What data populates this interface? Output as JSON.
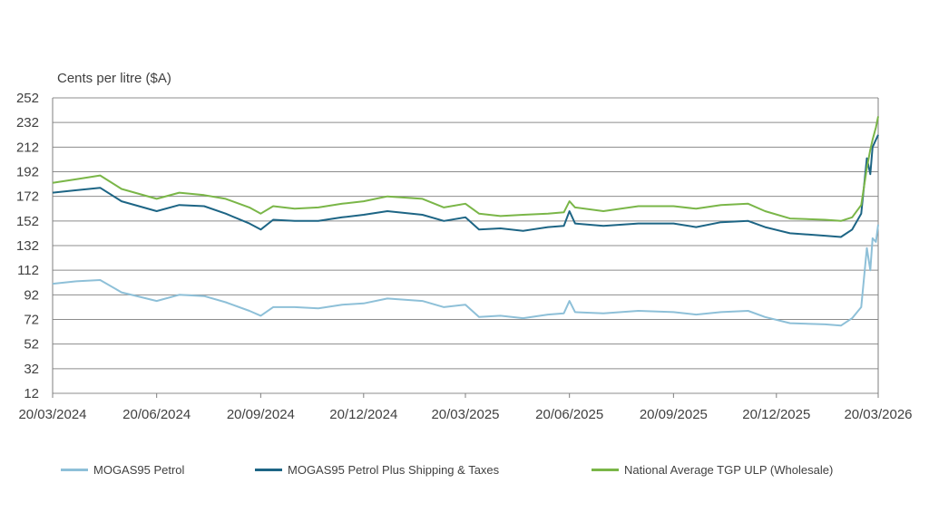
{
  "chart_data": {
    "type": "line",
    "unit_label": "Cents per litre ($A)",
    "ylim": [
      12,
      252
    ],
    "y_ticks": [
      252,
      232,
      212,
      192,
      172,
      152,
      132,
      112,
      92,
      72,
      52,
      32,
      12
    ],
    "x_ticks": [
      "20/03/2024",
      "20/06/2024",
      "20/09/2024",
      "20/12/2024",
      "20/03/2025",
      "20/06/2025",
      "20/09/2025",
      "20/12/2025",
      "20/03/2026"
    ],
    "grid": true,
    "legend_position": "bottom",
    "series": [
      {
        "name": "MOGAS95 Petrol",
        "color": "#8ec0d8",
        "points": [
          [
            "20/03/2024",
            101
          ],
          [
            "10/04/2024",
            103
          ],
          [
            "01/05/2024",
            104
          ],
          [
            "20/05/2024",
            94
          ],
          [
            "20/06/2024",
            87
          ],
          [
            "10/07/2024",
            92
          ],
          [
            "01/08/2024",
            91
          ],
          [
            "20/08/2024",
            86
          ],
          [
            "10/09/2024",
            79
          ],
          [
            "20/09/2024",
            75
          ],
          [
            "01/10/2024",
            82
          ],
          [
            "20/10/2024",
            82
          ],
          [
            "10/11/2024",
            81
          ],
          [
            "01/12/2024",
            84
          ],
          [
            "20/12/2024",
            85
          ],
          [
            "10/01/2025",
            89
          ],
          [
            "10/02/2025",
            87
          ],
          [
            "01/03/2025",
            82
          ],
          [
            "20/03/2025",
            84
          ],
          [
            "01/04/2025",
            74
          ],
          [
            "20/04/2025",
            75
          ],
          [
            "10/05/2025",
            73
          ],
          [
            "01/06/2025",
            76
          ],
          [
            "15/06/2025",
            77
          ],
          [
            "20/06/2025",
            87
          ],
          [
            "25/06/2025",
            78
          ],
          [
            "20/07/2025",
            77
          ],
          [
            "20/08/2025",
            79
          ],
          [
            "20/09/2025",
            78
          ],
          [
            "10/10/2025",
            76
          ],
          [
            "01/11/2025",
            78
          ],
          [
            "25/11/2025",
            79
          ],
          [
            "10/12/2025",
            74
          ],
          [
            "01/01/2026",
            69
          ],
          [
            "01/02/2026",
            68
          ],
          [
            "15/02/2026",
            67
          ],
          [
            "25/02/2026",
            73
          ],
          [
            "05/03/2026",
            82
          ],
          [
            "10/03/2026",
            130
          ],
          [
            "13/03/2026",
            112
          ],
          [
            "15/03/2026",
            138
          ],
          [
            "18/03/2026",
            135
          ],
          [
            "20/03/2026",
            149
          ]
        ]
      },
      {
        "name": "MOGAS95 Petrol Plus Shipping & Taxes",
        "color": "#1d6585",
        "points": [
          [
            "20/03/2024",
            175
          ],
          [
            "10/04/2024",
            177
          ],
          [
            "01/05/2024",
            179
          ],
          [
            "20/05/2024",
            168
          ],
          [
            "20/06/2024",
            160
          ],
          [
            "10/07/2024",
            165
          ],
          [
            "01/08/2024",
            164
          ],
          [
            "20/08/2024",
            158
          ],
          [
            "10/09/2024",
            150
          ],
          [
            "20/09/2024",
            145
          ],
          [
            "01/10/2024",
            153
          ],
          [
            "20/10/2024",
            152
          ],
          [
            "10/11/2024",
            152
          ],
          [
            "01/12/2024",
            155
          ],
          [
            "20/12/2024",
            157
          ],
          [
            "10/01/2025",
            160
          ],
          [
            "10/02/2025",
            157
          ],
          [
            "01/03/2025",
            152
          ],
          [
            "20/03/2025",
            155
          ],
          [
            "01/04/2025",
            145
          ],
          [
            "20/04/2025",
            146
          ],
          [
            "10/05/2025",
            144
          ],
          [
            "01/06/2025",
            147
          ],
          [
            "15/06/2025",
            148
          ],
          [
            "20/06/2025",
            160
          ],
          [
            "25/06/2025",
            150
          ],
          [
            "20/07/2025",
            148
          ],
          [
            "20/08/2025",
            150
          ],
          [
            "20/09/2025",
            150
          ],
          [
            "10/10/2025",
            147
          ],
          [
            "01/11/2025",
            151
          ],
          [
            "25/11/2025",
            152
          ],
          [
            "10/12/2025",
            147
          ],
          [
            "01/01/2026",
            142
          ],
          [
            "01/02/2026",
            140
          ],
          [
            "15/02/2026",
            139
          ],
          [
            "25/02/2026",
            145
          ],
          [
            "05/03/2026",
            158
          ],
          [
            "10/03/2026",
            203
          ],
          [
            "13/03/2026",
            190
          ],
          [
            "15/03/2026",
            212
          ],
          [
            "18/03/2026",
            218
          ],
          [
            "20/03/2026",
            222
          ]
        ]
      },
      {
        "name": "National Average TGP ULP (Wholesale)",
        "color": "#7ab648",
        "points": [
          [
            "20/03/2024",
            183
          ],
          [
            "10/04/2024",
            186
          ],
          [
            "01/05/2024",
            189
          ],
          [
            "20/05/2024",
            178
          ],
          [
            "20/06/2024",
            170
          ],
          [
            "10/07/2024",
            175
          ],
          [
            "01/08/2024",
            173
          ],
          [
            "20/08/2024",
            170
          ],
          [
            "10/09/2024",
            163
          ],
          [
            "20/09/2024",
            158
          ],
          [
            "01/10/2024",
            164
          ],
          [
            "20/10/2024",
            162
          ],
          [
            "10/11/2024",
            163
          ],
          [
            "01/12/2024",
            166
          ],
          [
            "20/12/2024",
            168
          ],
          [
            "10/01/2025",
            172
          ],
          [
            "10/02/2025",
            170
          ],
          [
            "01/03/2025",
            163
          ],
          [
            "20/03/2025",
            166
          ],
          [
            "01/04/2025",
            158
          ],
          [
            "20/04/2025",
            156
          ],
          [
            "10/05/2025",
            157
          ],
          [
            "01/06/2025",
            158
          ],
          [
            "15/06/2025",
            159
          ],
          [
            "20/06/2025",
            168
          ],
          [
            "25/06/2025",
            163
          ],
          [
            "20/07/2025",
            160
          ],
          [
            "20/08/2025",
            164
          ],
          [
            "20/09/2025",
            164
          ],
          [
            "10/10/2025",
            162
          ],
          [
            "01/11/2025",
            165
          ],
          [
            "25/11/2025",
            166
          ],
          [
            "10/12/2025",
            160
          ],
          [
            "01/01/2026",
            154
          ],
          [
            "01/02/2026",
            153
          ],
          [
            "15/02/2026",
            152
          ],
          [
            "25/02/2026",
            155
          ],
          [
            "05/03/2026",
            165
          ],
          [
            "10/03/2026",
            195
          ],
          [
            "13/03/2026",
            210
          ],
          [
            "15/03/2026",
            218
          ],
          [
            "18/03/2026",
            228
          ],
          [
            "20/03/2026",
            237
          ]
        ]
      }
    ]
  }
}
